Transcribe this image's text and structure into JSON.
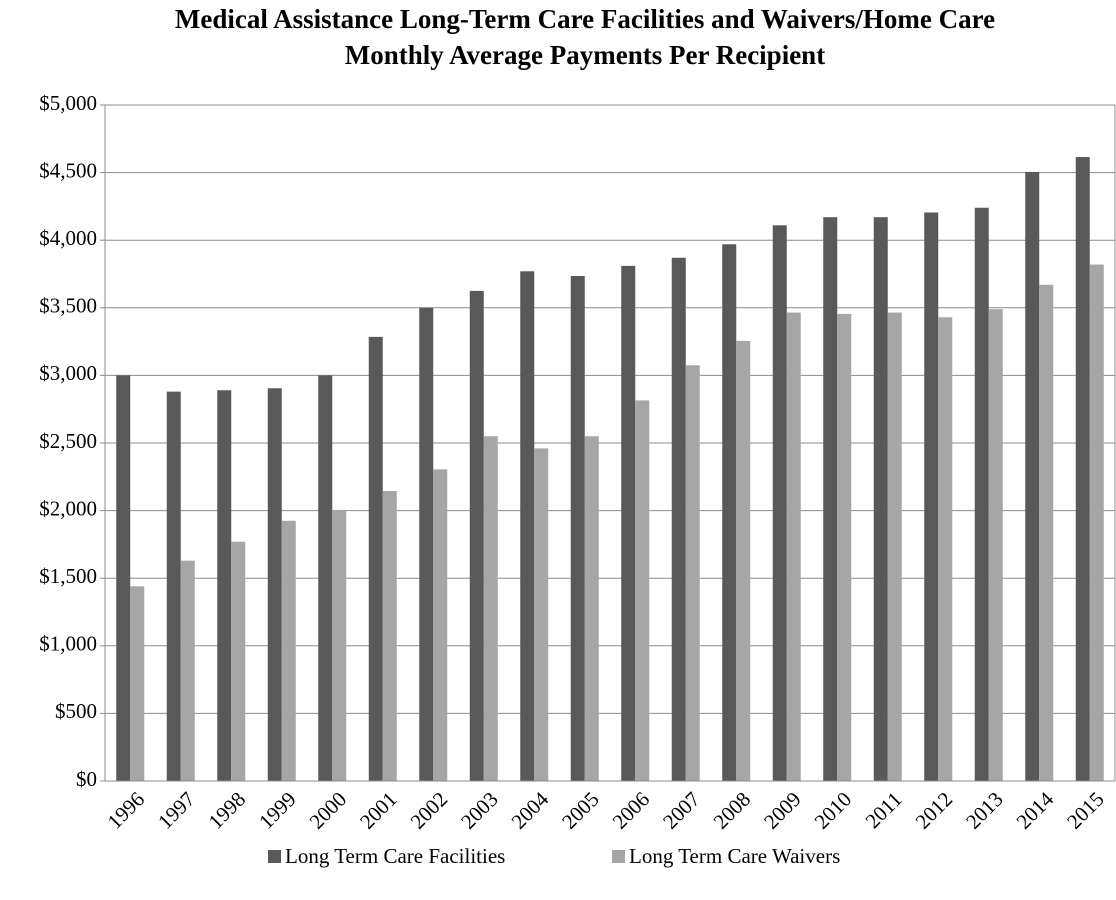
{
  "chart_data": {
    "type": "bar",
    "title": "Medical Assistance Long-Term Care Facilities and Waivers/Home Care",
    "subtitle": "Monthly Average Payments Per Recipient",
    "categories": [
      "1996",
      "1997",
      "1998",
      "1999",
      "2000",
      "2001",
      "2002",
      "2003",
      "2004",
      "2005",
      "2006",
      "2007",
      "2008",
      "2009",
      "2010",
      "2011",
      "2012",
      "2013",
      "2014",
      "2015"
    ],
    "series": [
      {
        "name": "Long Term Care Facilities",
        "color": "#595959",
        "values": [
          3000,
          2880,
          2890,
          2905,
          3000,
          3285,
          3500,
          3625,
          3770,
          3735,
          3810,
          3870,
          3970,
          4110,
          4170,
          4170,
          4205,
          4240,
          4505,
          4615
        ]
      },
      {
        "name": "Long Term Care Waivers",
        "color": "#a6a6a6",
        "values": [
          1440,
          1630,
          1770,
          1925,
          2005,
          2145,
          2305,
          2550,
          2460,
          2550,
          2815,
          3075,
          3255,
          3465,
          3455,
          3465,
          3430,
          3490,
          3670,
          3820
        ]
      }
    ],
    "ylim": [
      0,
      5000
    ],
    "yticks": [
      {
        "value": 0,
        "label": "$0"
      },
      {
        "value": 500,
        "label": "$500"
      },
      {
        "value": 1000,
        "label": "$1,000"
      },
      {
        "value": 1500,
        "label": "$1,500"
      },
      {
        "value": 2000,
        "label": "$2,000"
      },
      {
        "value": 2500,
        "label": "$2,500"
      },
      {
        "value": 3000,
        "label": "$3,000"
      },
      {
        "value": 3500,
        "label": "$3,500"
      },
      {
        "value": 4000,
        "label": "$4,000"
      },
      {
        "value": 4500,
        "label": "$4,500"
      },
      {
        "value": 5000,
        "label": "$5,000"
      }
    ],
    "grid": true,
    "legend": "bottom"
  }
}
